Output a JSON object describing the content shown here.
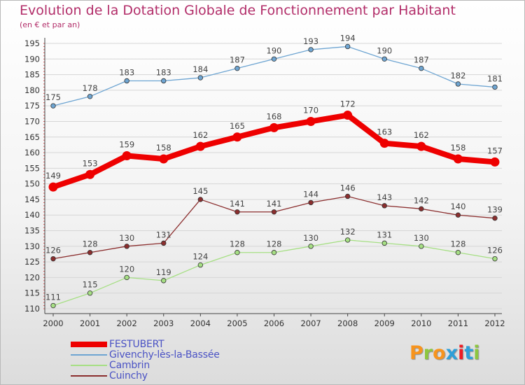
{
  "title": "Evolution de la Dotation Globale de Fonctionnement par Habitant",
  "subtitle": "(en € et par an)",
  "brand": "Proxiti",
  "brand_colors": [
    "#f7941d",
    "#8dc63f",
    "#f7941d",
    "#2e9fd8",
    "#ed1c24",
    "#2e9fd8",
    "#8dc63f"
  ],
  "chart_data": {
    "type": "line",
    "title": "Evolution de la Dotation Globale de Fonctionnement par Habitant",
    "subtitle": "(en € et par an)",
    "x": [
      "2000",
      "2001",
      "2002",
      "2003",
      "2004",
      "2005",
      "2006",
      "2007",
      "2008",
      "2009",
      "2010",
      "2011",
      "2012"
    ],
    "ylim": [
      110,
      195
    ],
    "yticks": [
      110,
      115,
      120,
      125,
      130,
      135,
      140,
      145,
      150,
      155,
      160,
      165,
      170,
      175,
      180,
      185,
      190,
      195
    ],
    "grid": "horizontal",
    "legend_position": "bottom-left",
    "series": [
      {
        "name": "FESTUBERT",
        "color": "#ee0000",
        "emphasis": true,
        "values": [
          149,
          153,
          159,
          158,
          162,
          165,
          168,
          170,
          172,
          163,
          162,
          158,
          157
        ]
      },
      {
        "name": "Givenchy-lès-la-Bassée",
        "color": "#6ea5d2",
        "emphasis": false,
        "values": [
          175,
          178,
          183,
          183,
          184,
          187,
          190,
          193,
          194,
          190,
          187,
          182,
          181
        ]
      },
      {
        "name": "Cambrin",
        "color": "#a6df84",
        "emphasis": false,
        "values": [
          111,
          115,
          120,
          119,
          124,
          128,
          128,
          130,
          132,
          131,
          130,
          128,
          126
        ]
      },
      {
        "name": "Cuinchy",
        "color": "#8b2e2e",
        "emphasis": false,
        "values": [
          126,
          128,
          130,
          131,
          145,
          141,
          141,
          144,
          146,
          143,
          142,
          140,
          139
        ]
      }
    ]
  }
}
